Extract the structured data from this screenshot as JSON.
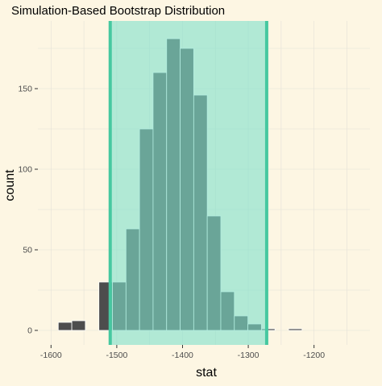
{
  "chart_data": {
    "type": "bar",
    "title": "Simulation-Based Bootstrap Distribution",
    "xlabel": "stat",
    "ylabel": "count",
    "xlim": [
      -1620,
      -1115
    ],
    "ylim": [
      -9,
      192
    ],
    "x_ticks": [
      {
        "value": -1600,
        "label": "-1600"
      },
      {
        "value": -1500,
        "label": "-1500"
      },
      {
        "value": -1400,
        "label": "-1400"
      },
      {
        "value": -1300,
        "label": "-1300"
      },
      {
        "value": -1200,
        "label": "-1200"
      }
    ],
    "y_ticks": [
      {
        "value": 0,
        "label": "0"
      },
      {
        "value": 50,
        "label": "50"
      },
      {
        "value": 100,
        "label": "100"
      },
      {
        "value": 150,
        "label": "150"
      }
    ],
    "bin_width": 20.6,
    "bins": [
      {
        "start": -1589,
        "count": 5
      },
      {
        "start": -1568.4,
        "count": 6
      },
      {
        "start": -1547.8,
        "count": 0
      },
      {
        "start": -1527.2,
        "count": 30
      },
      {
        "start": -1506.6,
        "count": 30
      },
      {
        "start": -1486.0,
        "count": 63
      },
      {
        "start": -1465.4,
        "count": 125
      },
      {
        "start": -1444.8,
        "count": 160
      },
      {
        "start": -1424.2,
        "count": 181
      },
      {
        "start": -1403.6,
        "count": 175
      },
      {
        "start": -1383.0,
        "count": 146
      },
      {
        "start": -1362.4,
        "count": 71
      },
      {
        "start": -1341.8,
        "count": 24
      },
      {
        "start": -1321.2,
        "count": 9
      },
      {
        "start": -1300.6,
        "count": 4
      },
      {
        "start": -1280.0,
        "count": 1
      },
      {
        "start": -1259.4,
        "count": 0
      },
      {
        "start": -1238.8,
        "count": 1
      }
    ],
    "shaded_interval": [
      -1510,
      -1272
    ],
    "grid": true,
    "colors": {
      "background": "#fdf6e3",
      "grid": "#e4e1d8",
      "bar_fill": "#4d4d4d",
      "bar_outline": "#ffffff",
      "interval_fill": "#7fe1cc",
      "interval_line": "#46c8a0"
    }
  }
}
